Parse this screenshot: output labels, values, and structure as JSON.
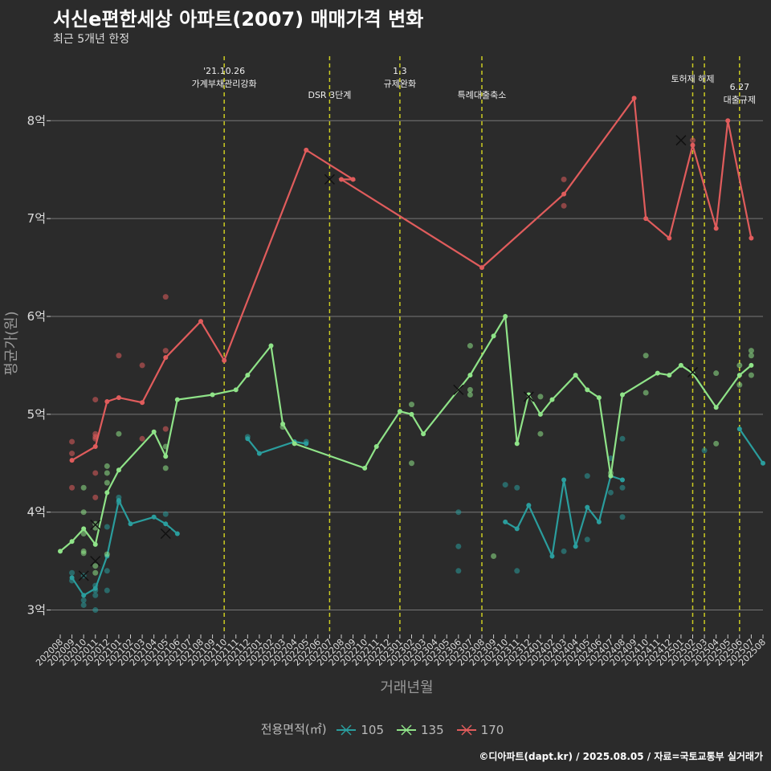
{
  "title": "서신e편한세상 아파트(2007) 매매가격 변화",
  "subtitle": "최근 5개년 한정",
  "caption": "©디아파트(dapt.kr) / 2025.08.05 / 자료=국토교통부 실거래가",
  "chart_data": {
    "type": "line",
    "xlabel": "거래년월",
    "ylabel": "평균가(원)",
    "ylim": [
      2.75,
      8.7
    ],
    "yticks": [
      3,
      4,
      5,
      6,
      7,
      8
    ],
    "ytick_labels": [
      "3억",
      "4억",
      "5억",
      "6억",
      "7억",
      "8억"
    ],
    "grid": true,
    "legend_title": "전용면적(㎡)",
    "legend_position": "bottom",
    "x_categories": [
      "202008",
      "202009",
      "202010",
      "202011",
      "202012",
      "202101",
      "202102",
      "202103",
      "202104",
      "202105",
      "202106",
      "202107",
      "202108",
      "202109",
      "202110",
      "202111",
      "202112",
      "202201",
      "202202",
      "202203",
      "202204",
      "202205",
      "202206",
      "202207",
      "202208",
      "202209",
      "202210",
      "202211",
      "202212",
      "202301",
      "202302",
      "202303",
      "202304",
      "202305",
      "202306",
      "202307",
      "202308",
      "202309",
      "202310",
      "202311",
      "202312",
      "202401",
      "202402",
      "202403",
      "202404",
      "202405",
      "202406",
      "202407",
      "202408",
      "202409",
      "202410",
      "202411",
      "202412",
      "202501",
      "202502",
      "202503",
      "202504",
      "202505",
      "202506",
      "202507",
      "202508"
    ],
    "series": [
      {
        "name": "105",
        "color": "#2a9d9d",
        "segments": [
          [
            [
              "202009",
              3.33
            ],
            [
              "202010",
              3.15
            ],
            [
              "202011",
              3.22
            ],
            [
              "202012",
              3.55
            ],
            [
              "202101",
              4.12
            ],
            [
              "202102",
              3.88
            ],
            [
              "202104",
              3.95
            ],
            [
              "202105",
              3.88
            ],
            [
              "202106",
              3.78
            ]
          ],
          [
            [
              "202112",
              4.75
            ],
            [
              "202201",
              4.6
            ],
            [
              "202204",
              4.72
            ],
            [
              "202205",
              4.7
            ]
          ],
          [
            [
              "202310",
              3.9
            ],
            [
              "202311",
              3.83
            ],
            [
              "202312",
              4.07
            ],
            [
              "202402",
              3.55
            ],
            [
              "202403",
              4.33
            ],
            [
              "202404",
              3.65
            ],
            [
              "202405",
              4.05
            ],
            [
              "202406",
              3.9
            ],
            [
              "202407",
              4.37
            ],
            [
              "202408",
              4.33
            ]
          ],
          [
            [
              "202506",
              4.85
            ],
            [
              "202508",
              4.5
            ]
          ]
        ],
        "points": [
          [
            "202009",
            3.38
          ],
          [
            "202009",
            3.3
          ],
          [
            "202010",
            3.1
          ],
          [
            "202010",
            3.05
          ],
          [
            "202010",
            3.35
          ],
          [
            "202011",
            3.2
          ],
          [
            "202011",
            3.15
          ],
          [
            "202011",
            3.0
          ],
          [
            "202011",
            3.25
          ],
          [
            "202012",
            3.4
          ],
          [
            "202012",
            3.2
          ],
          [
            "202012",
            3.85
          ],
          [
            "202101",
            4.15
          ],
          [
            "202101",
            4.1
          ],
          [
            "202105",
            3.98
          ],
          [
            "202112",
            4.77
          ],
          [
            "202205",
            4.72
          ],
          [
            "202306",
            4.0
          ],
          [
            "202306",
            3.65
          ],
          [
            "202306",
            3.4
          ],
          [
            "202310",
            4.28
          ],
          [
            "202311",
            4.25
          ],
          [
            "202311",
            3.4
          ],
          [
            "202403",
            3.6
          ],
          [
            "202405",
            4.37
          ],
          [
            "202405",
            3.72
          ],
          [
            "202407",
            4.55
          ],
          [
            "202407",
            4.2
          ],
          [
            "202408",
            4.75
          ],
          [
            "202408",
            4.25
          ],
          [
            "202408",
            3.95
          ],
          [
            "202503",
            4.63
          ]
        ],
        "x_markers": [
          [
            "202010",
            3.35
          ],
          [
            "202011",
            3.5
          ],
          [
            "202105",
            3.78
          ]
        ]
      },
      {
        "name": "135",
        "color": "#8fe388",
        "segments": [
          [
            [
              "202008",
              3.6
            ],
            [
              "202009",
              3.7
            ],
            [
              "202010",
              3.83
            ],
            [
              "202011",
              3.67
            ],
            [
              "202012",
              4.2
            ],
            [
              "202101",
              4.43
            ],
            [
              "202104",
              4.82
            ],
            [
              "202105",
              4.57
            ],
            [
              "202106",
              5.15
            ],
            [
              "202109",
              5.2
            ],
            [
              "202111",
              5.25
            ],
            [
              "202112",
              5.4
            ],
            [
              "202202",
              5.7
            ],
            [
              "202203",
              4.9
            ],
            [
              "202204",
              4.7
            ],
            [
              "202210",
              4.45
            ],
            [
              "202211",
              4.67
            ],
            [
              "202301",
              5.03
            ],
            [
              "202302",
              5.0
            ],
            [
              "202303",
              4.8
            ],
            [
              "202307",
              5.4
            ],
            [
              "202309",
              5.8
            ],
            [
              "202310",
              6.0
            ],
            [
              "202311",
              4.7
            ],
            [
              "202312",
              5.2
            ],
            [
              "202401",
              5.0
            ],
            [
              "202402",
              5.15
            ],
            [
              "202404",
              5.4
            ],
            [
              "202405",
              5.25
            ],
            [
              "202406",
              5.17
            ],
            [
              "202407",
              4.37
            ],
            [
              "202408",
              5.2
            ],
            [
              "202411",
              5.42
            ],
            [
              "202412",
              5.4
            ],
            [
              "202501",
              5.5
            ],
            [
              "202502",
              5.42
            ],
            [
              "202504",
              5.07
            ],
            [
              "202506",
              5.4
            ],
            [
              "202507",
              5.5
            ]
          ]
        ],
        "points": [
          [
            "202010",
            4.25
          ],
          [
            "202010",
            4.0
          ],
          [
            "202010",
            3.78
          ],
          [
            "202010",
            3.6
          ],
          [
            "202010",
            3.58
          ],
          [
            "202011",
            3.45
          ],
          [
            "202011",
            3.38
          ],
          [
            "202011",
            3.88
          ],
          [
            "202011",
            3.84
          ],
          [
            "202012",
            4.47
          ],
          [
            "202012",
            4.4
          ],
          [
            "202012",
            4.3
          ],
          [
            "202012",
            3.57
          ],
          [
            "202101",
            4.8
          ],
          [
            "202105",
            4.67
          ],
          [
            "202105",
            4.45
          ],
          [
            "202203",
            4.87
          ],
          [
            "202302",
            5.1
          ],
          [
            "202302",
            4.5
          ],
          [
            "202307",
            5.7
          ],
          [
            "202307",
            5.25
          ],
          [
            "202307",
            5.2
          ],
          [
            "202309",
            3.55
          ],
          [
            "202401",
            5.18
          ],
          [
            "202401",
            4.8
          ],
          [
            "202407",
            4.4
          ],
          [
            "202410",
            5.6
          ],
          [
            "202410",
            5.22
          ],
          [
            "202504",
            5.42
          ],
          [
            "202504",
            4.7
          ],
          [
            "202506",
            5.5
          ],
          [
            "202506",
            5.3
          ],
          [
            "202507",
            5.65
          ],
          [
            "202507",
            5.6
          ],
          [
            "202507",
            5.4
          ]
        ],
        "x_markers": [
          [
            "202011",
            3.87
          ],
          [
            "202306",
            5.25
          ],
          [
            "202312",
            5.18
          ],
          [
            "202502",
            5.43
          ]
        ]
      },
      {
        "name": "170",
        "color": "#e05c5c",
        "segments": [
          [
            [
              "202009",
              4.53
            ],
            [
              "202011",
              4.67
            ],
            [
              "202012",
              5.13
            ],
            [
              "202101",
              5.17
            ],
            [
              "202103",
              5.12
            ],
            [
              "202105",
              5.58
            ],
            [
              "202108",
              5.95
            ],
            [
              "202110",
              5.55
            ],
            [
              "202205",
              7.7
            ],
            [
              "202209",
              7.4
            ],
            [
              "202208",
              7.4
            ],
            [
              "202308",
              6.5
            ],
            [
              "202403",
              7.25
            ],
            [
              "202409",
              8.23
            ],
            [
              "202410",
              7.0
            ],
            [
              "202412",
              6.8
            ],
            [
              "202502",
              7.75
            ],
            [
              "202504",
              6.9
            ],
            [
              "202505",
              8.0
            ],
            [
              "202507",
              6.8
            ]
          ]
        ],
        "points": [
          [
            "202009",
            4.72
          ],
          [
            "202009",
            4.6
          ],
          [
            "202009",
            4.25
          ],
          [
            "202011",
            5.15
          ],
          [
            "202011",
            4.8
          ],
          [
            "202011",
            4.77
          ],
          [
            "202011",
            4.75
          ],
          [
            "202011",
            4.4
          ],
          [
            "202011",
            4.15
          ],
          [
            "202101",
            5.6
          ],
          [
            "202103",
            5.5
          ],
          [
            "202103",
            4.75
          ],
          [
            "202105",
            6.2
          ],
          [
            "202105",
            5.65
          ],
          [
            "202105",
            4.85
          ],
          [
            "202403",
            7.4
          ],
          [
            "202403",
            7.13
          ],
          [
            "202502",
            7.8
          ]
        ],
        "x_markers": [
          [
            "202207",
            7.4
          ],
          [
            "202501",
            7.8
          ]
        ]
      }
    ],
    "events": [
      {
        "x": "202110",
        "label": "'21.10.26\n가계부채관리강화"
      },
      {
        "x": "202207",
        "label": "DSR 3단계"
      },
      {
        "x": "202301",
        "label": "1.3\n규제완화"
      },
      {
        "x": "202308",
        "label": "특례대출축소"
      },
      {
        "x": "202502",
        "label": "토허제 해제"
      },
      {
        "x": "202503",
        "label": ""
      },
      {
        "x": "202506",
        "label": "6.27\n대출규제"
      }
    ]
  }
}
